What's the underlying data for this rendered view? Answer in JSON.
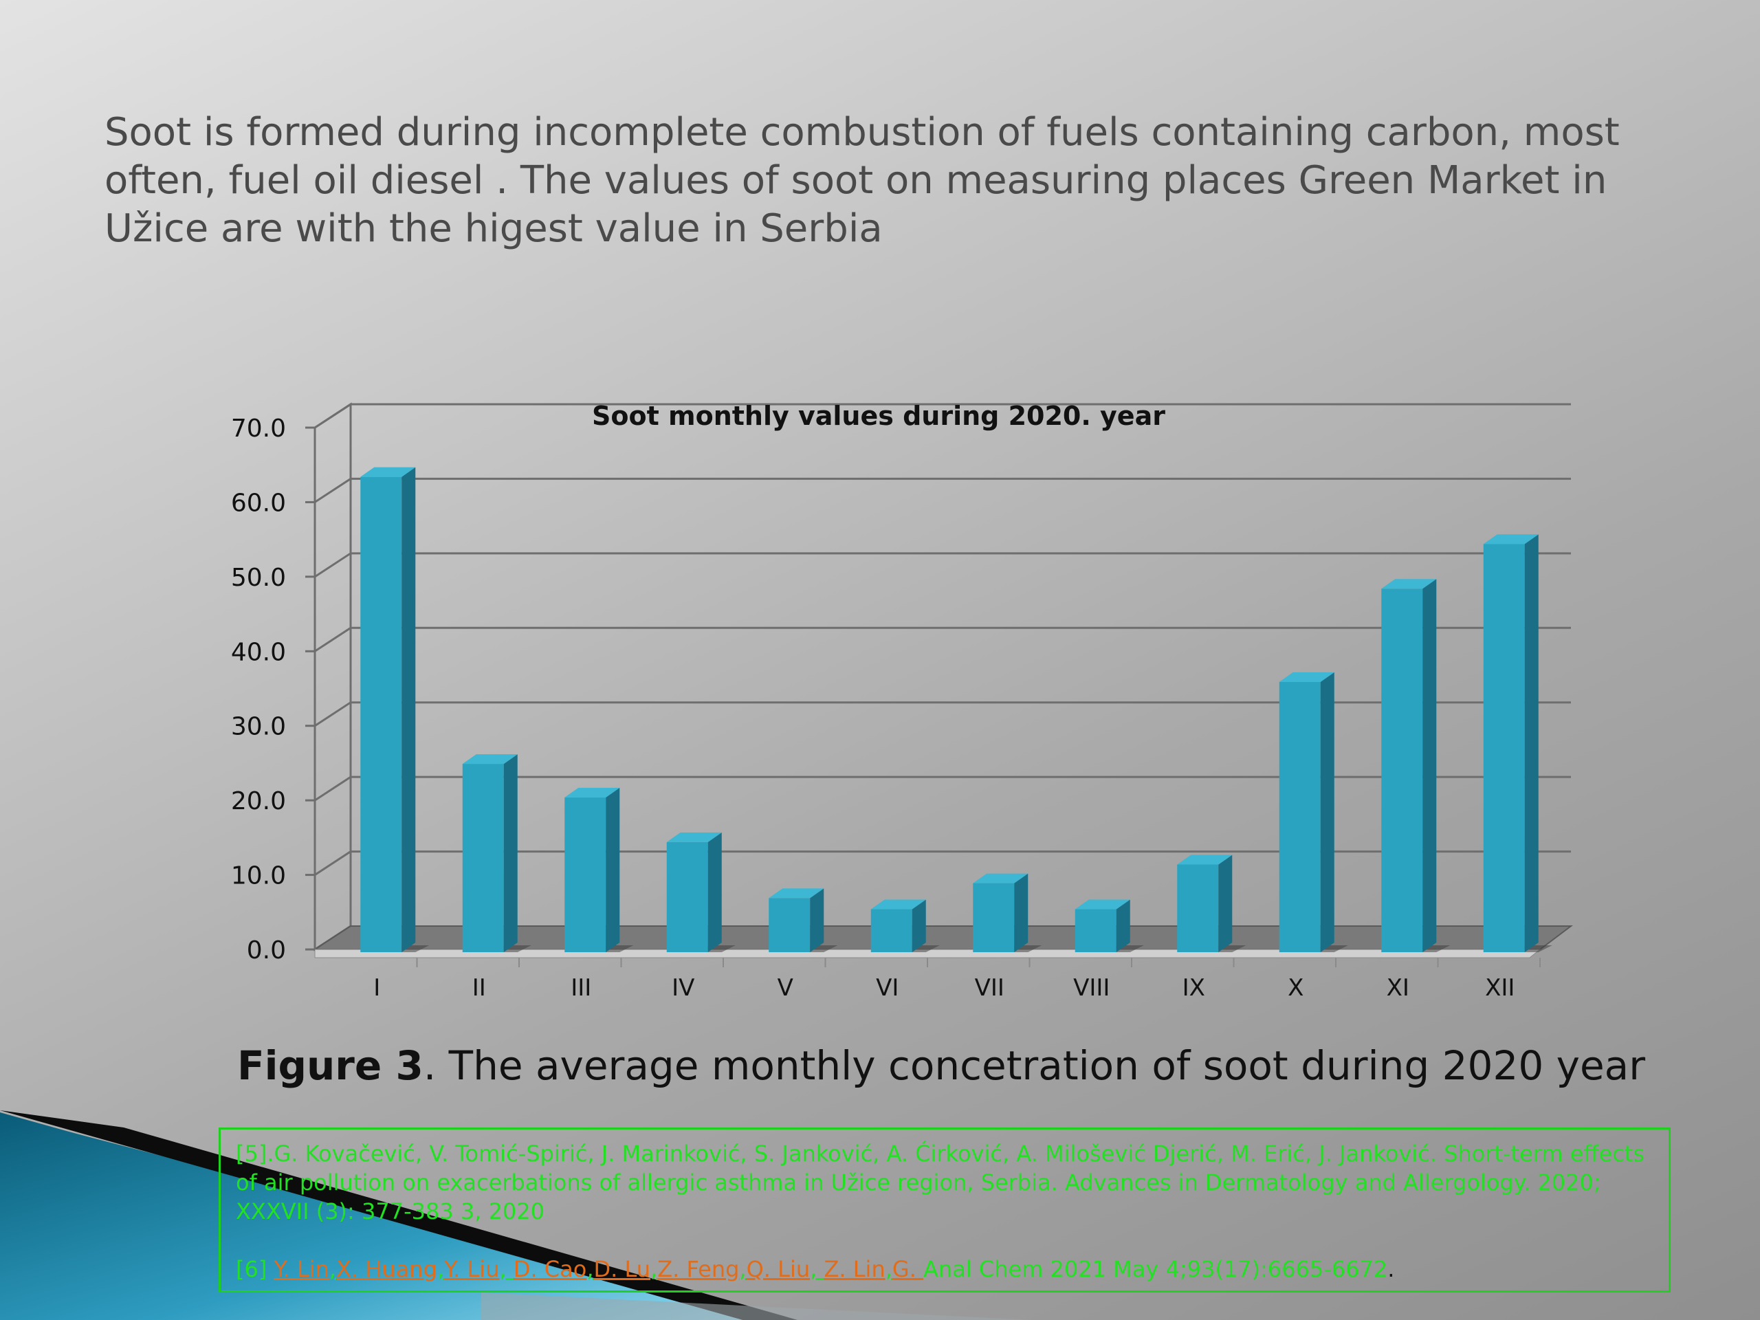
{
  "slide": {
    "intro_text": "Soot is formed during incomplete combustion of fuels containing carbon, most often, fuel oil diesel . The values of soot on measuring places Green Market in Užice are with the higest value in Serbia",
    "caption_label": "Figure 3",
    "caption_text": ". The average monthly concetration of soot during 2020 year",
    "ref1": "[5].G. Kovačević, V. Tomić-Spirić, J. Marinković, S. Janković, A. Ćirković, A. Milošević Djerić, M. Erić, J. Janković. Short-term effects of air pollution on exacerbations of allergic asthma in Užice region, Serbia. Advances in Dermatology and Allergology. 2020; XXXVII (3): 377-383 3, 2020",
    "ref2_label": "[6]",
    "ref2_authors": [
      {
        "text": "Y. Lin",
        "color": "orange"
      },
      {
        "text": ",",
        "color": "plain"
      },
      {
        "text": "X. Huang",
        "color": "orange"
      },
      {
        "text": ",",
        "color": "plain"
      },
      {
        "text": "Y. Liu",
        "color": "orange"
      },
      {
        "text": ", ",
        "color": "plain"
      },
      {
        "text": "D. Cao",
        "color": "orange"
      },
      {
        "text": ",",
        "color": "plain"
      },
      {
        "text": "D. Lu",
        "color": "orange"
      },
      {
        "text": ",",
        "color": "plain"
      },
      {
        "text": "Z. Feng",
        "color": "orange"
      },
      {
        "text": ",",
        "color": "plain"
      },
      {
        "text": "Q. Liu",
        "color": "orange"
      },
      {
        "text": ", ",
        "color": "plain"
      },
      {
        "text": "Z. Lin",
        "color": "orange"
      },
      {
        "text": ",",
        "color": "plain"
      },
      {
        "text": "G. ",
        "color": "orange"
      }
    ],
    "ref2_journal": " Anal Chem 2021 May 4;93(17):6665-6672",
    "ref2_end": "."
  },
  "chart_data": {
    "type": "bar",
    "title": "Soot  monthly values during 2020. year",
    "categories": [
      "I",
      "II",
      "III",
      "IV",
      "V",
      "VI",
      "VII",
      "VIII",
      "IX",
      "X",
      "XI",
      "XII"
    ],
    "series": [
      {
        "values": [
          64.5,
          26.0,
          21.5,
          15.5,
          8.0,
          6.5,
          10.0,
          6.5,
          12.5,
          37.0,
          49.5,
          55.5
        ]
      }
    ],
    "ylim": [
      0,
      70
    ],
    "yticks": [
      "0.0",
      "10.0",
      "20.0",
      "30.0",
      "40.0",
      "50.0",
      "60.0",
      "70.0"
    ],
    "grid": true,
    "bar_color": "#2aa3c0",
    "bar_side_color": "#1a6f86",
    "bar_top_color": "#3db7d3"
  }
}
